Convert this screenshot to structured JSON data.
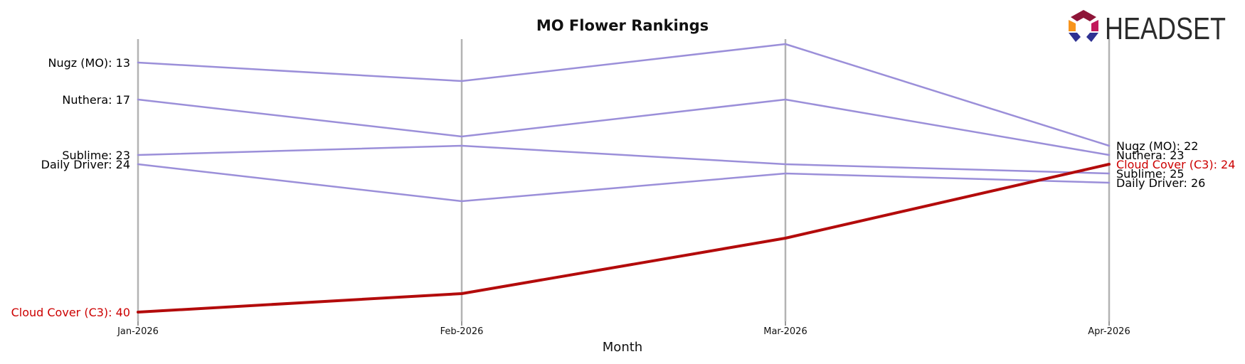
{
  "chart_data": {
    "type": "line",
    "title": "MO Flower Rankings",
    "xlabel": "Month",
    "ylabel": "",
    "categories": [
      "Jan-2026",
      "Feb-2026",
      "Mar-2026",
      "Apr-2026"
    ],
    "y_inverted": true,
    "ylim": [
      11,
      41
    ],
    "grid": "vertical lines at each month",
    "series": [
      {
        "name": "Nugz (MO)",
        "values": [
          13,
          15,
          11,
          22
        ],
        "color": "#9b8fd9",
        "highlight": false
      },
      {
        "name": "Nuthera",
        "values": [
          17,
          21,
          17,
          23
        ],
        "color": "#9b8fd9",
        "highlight": false
      },
      {
        "name": "Sublime",
        "values": [
          23,
          22,
          24,
          25
        ],
        "color": "#9b8fd9",
        "highlight": false
      },
      {
        "name": "Daily Driver",
        "values": [
          24,
          28,
          25,
          26
        ],
        "color": "#9b8fd9",
        "highlight": false
      },
      {
        "name": "Cloud Cover (C3)",
        "values": [
          40,
          38,
          32,
          24
        ],
        "color": "#b30b0b",
        "highlight": true
      }
    ],
    "start_labels": [
      "Nugz (MO): 13",
      "Nuthera: 17",
      "Sublime: 23",
      "Daily Driver: 24",
      "Cloud Cover (C3): 40"
    ],
    "end_labels": [
      "Nugz (MO): 22",
      "Nuthera: 23",
      "Sublime: 25",
      "Daily Driver: 26",
      "Cloud Cover (C3): 24"
    ]
  },
  "logo": {
    "text": "HEADSET",
    "colors": [
      "#f7941d",
      "#c2185b",
      "#8e1538",
      "#2e3192"
    ]
  }
}
